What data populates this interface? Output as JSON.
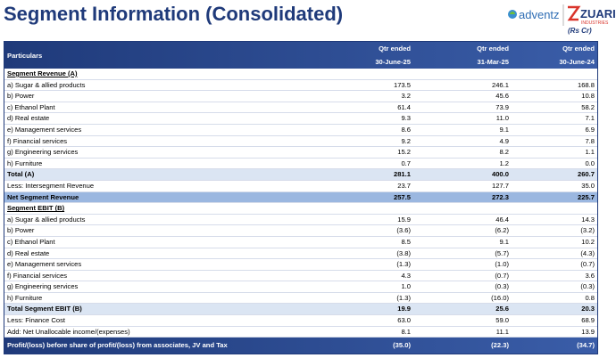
{
  "header": {
    "title": "Segment Information (Consolidated)",
    "logo_left": "adventz",
    "logo_right": "ZUARI",
    "logo_right_sub": "INDUSTRIES",
    "unit": "(Rs Cr)"
  },
  "table": {
    "columns": [
      {
        "label": "Particulars"
      },
      {
        "line1": "Qtr ended",
        "line2": "30-June-25"
      },
      {
        "line1": "Qtr ended",
        "line2": "31-Mar-25"
      },
      {
        "line1": "Qtr ended",
        "line2": "30-June-24"
      }
    ],
    "rows": [
      [
        "Segment Revenue (A)"
      ],
      [
        "a) Sugar & allied products",
        "173.5",
        "246.1",
        "168.8"
      ],
      [
        "b) Power",
        "3.2",
        "45.6",
        "10.8"
      ],
      [
        "c) Ethanol Plant",
        "61.4",
        "73.9",
        "58.2"
      ],
      [
        "d) Real estate",
        "9.3",
        "11.0",
        "7.1"
      ],
      [
        "e) Management services",
        "8.6",
        "9.1",
        "6.9"
      ],
      [
        "f) Financial services",
        "9.2",
        "4.9",
        "7.8"
      ],
      [
        "g) Engineering services",
        "15.2",
        "8.2",
        "1.1"
      ],
      [
        "h) Furniture",
        "0.7",
        "1.2",
        "0.0"
      ],
      [
        "Total (A)",
        "281.1",
        "400.0",
        "260.7"
      ],
      [
        "Less: Intersegment Revenue",
        "23.7",
        "127.7",
        "35.0"
      ],
      [
        "Net Segment Revenue",
        "257.5",
        "272.3",
        "225.7"
      ],
      [
        "Segment EBIT (B)"
      ],
      [
        "a) Sugar & allied products",
        "15.9",
        "46.4",
        "14.3"
      ],
      [
        "b) Power",
        "(3.6)",
        "(6.2)",
        "(3.2)"
      ],
      [
        "c) Ethanol Plant",
        "8.5",
        "9.1",
        "10.2"
      ],
      [
        "d) Real estate",
        "(3.8)",
        "(5.7)",
        "(4.3)"
      ],
      [
        "e) Management services",
        "(1.3)",
        "(1.0)",
        "(0.7)"
      ],
      [
        "f) Financial services",
        "4.3",
        "(0.7)",
        "3.6"
      ],
      [
        "g) Engineering services",
        "1.0",
        "(0.3)",
        "(0.3)"
      ],
      [
        "h) Furniture",
        "(1.3)",
        "(16.0)",
        "0.8"
      ],
      [
        "Total Segment EBIT (B)",
        "19.9",
        "25.6",
        "20.3"
      ],
      [
        "Less: Finance Cost",
        "63.0",
        "59.0",
        "68.9"
      ],
      [
        "Add: Net Unallocable income/(expenses)",
        "8.1",
        "11.1",
        "13.9"
      ],
      [
        "Profit/(loss) before share of profit/(loss) from associates, JV and Tax",
        "(35.0)",
        "(22.3)",
        "(34.7)"
      ]
    ]
  }
}
